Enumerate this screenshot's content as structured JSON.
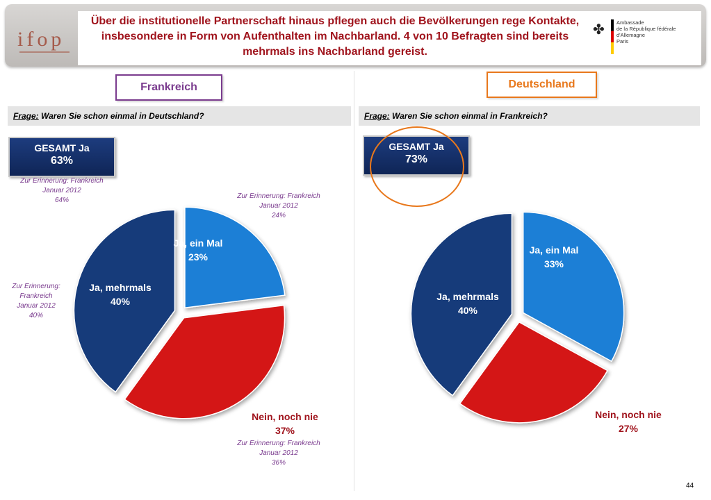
{
  "header": {
    "logo_text": "ifop",
    "title": "Über die institutionelle Partnerschaft hinaus pflegen auch die Bevölkerungen rege Kontakte, insbesondere in Form von Aufenthalten im Nachbarland. 4 von 10 Befragten sind bereits mehrmals ins Nachbarland gereist.",
    "embassy_line1": "Ambassade",
    "embassy_line2": "de la République fédérale d'Allemagne",
    "embassy_line3": "Paris"
  },
  "left": {
    "country": "Frankreich",
    "question_label": "Frage:",
    "question_text": " Waren Sie schon einmal in Deutschland?",
    "gesamt_label": "GESAMT Ja",
    "gesamt_value": "63%",
    "note_gesamt": [
      "Zur Erinnerung: Frankreich",
      "Januar 2012",
      "64%"
    ],
    "note_ein_mal": [
      "Zur Erinnerung: Frankreich",
      "Januar 2012",
      "24%"
    ],
    "note_mehrmals": [
      "Zur Erinnerung:",
      "Frankreich",
      "Januar 2012",
      "40%"
    ],
    "note_nein": [
      "Zur Erinnerung: Frankreich",
      "Januar 2012",
      "36%"
    ]
  },
  "right": {
    "country": "Deutschland",
    "question_label": "Frage:",
    "question_text": " Waren Sie schon einmal in Frankreich?",
    "gesamt_label": "GESAMT Ja",
    "gesamt_value": "73%"
  },
  "page_number": "44",
  "colors": {
    "ein_mal": "#1f7fd6",
    "mehrmals": "#163a7a",
    "nein": "#d41818",
    "title": "#a0141d",
    "frankreich": "#7a3b8e",
    "deutschland": "#e8781c"
  },
  "chart_data": [
    {
      "type": "pie",
      "title": "Frankreich",
      "slices": [
        {
          "name": "Ja, ein Mal",
          "value_label": "23%",
          "value": 23
        },
        {
          "name": "Nein, noch nie",
          "value_label": "37%",
          "value": 37
        },
        {
          "name": "Ja, mehrmals",
          "value_label": "40%",
          "value": 40
        }
      ]
    },
    {
      "type": "pie",
      "title": "Deutschland",
      "slices": [
        {
          "name": "Ja, ein Mal",
          "value_label": "33%",
          "value": 33
        },
        {
          "name": "Nein, noch nie",
          "value_label": "27%",
          "value": 27
        },
        {
          "name": "Ja, mehrmals",
          "value_label": "40%",
          "value": 40
        }
      ]
    }
  ]
}
